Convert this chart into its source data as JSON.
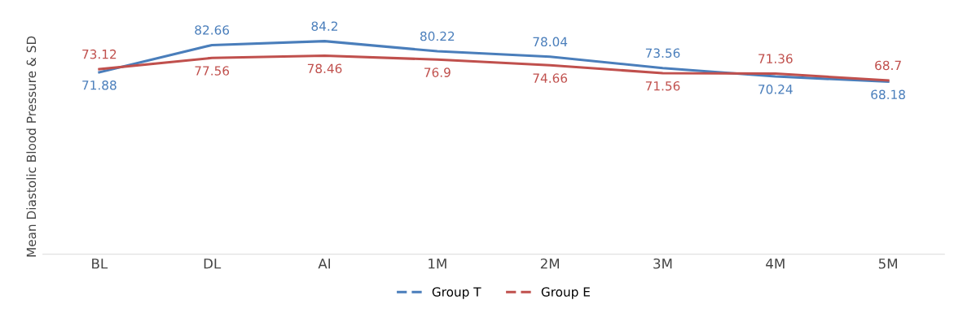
{
  "chart_data": {
    "type": "line",
    "ylabel": "Mean Diastolic Blood Pressure & SD",
    "categories": [
      "BL",
      "DL",
      "AI",
      "1M",
      "2M",
      "3M",
      "4M",
      "5M"
    ],
    "series": [
      {
        "name": "Group T",
        "color": "#4a7ebb",
        "values": [
          71.88,
          82.66,
          84.2,
          80.22,
          78.04,
          73.56,
          70.24,
          68.18
        ]
      },
      {
        "name": "Group E",
        "color": "#c0504d",
        "values": [
          73.12,
          77.56,
          78.46,
          76.9,
          74.66,
          71.56,
          71.36,
          68.7
        ]
      }
    ],
    "tick_labels": "x",
    "data_labels": true,
    "legend": "bottom",
    "grid": false,
    "marker": "none",
    "line_style": "solid"
  }
}
